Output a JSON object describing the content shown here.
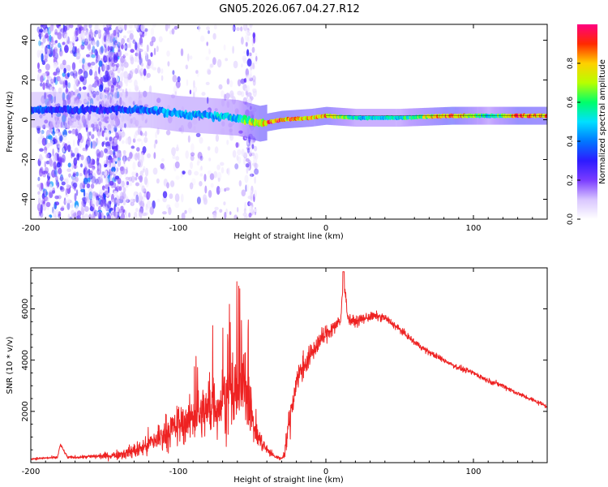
{
  "title": "GN05.2026.067.04.27.R12",
  "chart_data": [
    {
      "type": "heatmap",
      "name": "spectrogram",
      "xlabel": "Height of straight line (km)",
      "ylabel": "Frequency (Hz)",
      "xlim": [
        -200,
        150
      ],
      "ylim": [
        -50,
        48
      ],
      "xticks": [
        -200,
        -100,
        0,
        100
      ],
      "yticks": [
        -40,
        -20,
        0,
        20,
        40
      ],
      "colorbar": {
        "label": "Normalized spectral amplitude",
        "range": [
          0,
          1
        ],
        "ticks": [
          "0.0",
          "0.2",
          "0.4",
          "0.6",
          "0.8"
        ],
        "colors": [
          "#ffffff",
          "#d9c6ff",
          "#7a3cff",
          "#2d1bff",
          "#0077ff",
          "#00e0ff",
          "#00ff6a",
          "#b8ff00",
          "#ffd000",
          "#ff2a00",
          "#ff0080"
        ]
      },
      "signal_band": [
        {
          "x": -190,
          "freq_center": 5,
          "amplitude": 0.35
        },
        {
          "x": -150,
          "freq_center": 5,
          "amplitude": 0.3
        },
        {
          "x": -120,
          "freq_center": 5,
          "amplitude": 0.4
        },
        {
          "x": -100,
          "freq_center": 3,
          "amplitude": 0.45
        },
        {
          "x": -80,
          "freq_center": 2,
          "amplitude": 0.45
        },
        {
          "x": -60,
          "freq_center": 1,
          "amplitude": 0.5
        },
        {
          "x": -45,
          "freq_center": -2,
          "amplitude": 0.8
        },
        {
          "x": -30,
          "freq_center": 0,
          "amplitude": 0.85
        },
        {
          "x": -10,
          "freq_center": 1,
          "amplitude": 0.75
        },
        {
          "x": 0,
          "freq_center": 2,
          "amplitude": 0.8
        },
        {
          "x": 20,
          "freq_center": 1,
          "amplitude": 0.5
        },
        {
          "x": 50,
          "freq_center": 1,
          "amplitude": 0.5
        },
        {
          "x": 85,
          "freq_center": 2,
          "amplitude": 0.9
        },
        {
          "x": 110,
          "freq_center": 2,
          "amplitude": 0.5
        },
        {
          "x": 130,
          "freq_center": 2,
          "amplitude": 0.85
        },
        {
          "x": 150,
          "freq_center": 2,
          "amplitude": 0.8
        }
      ]
    },
    {
      "type": "line",
      "name": "snr",
      "xlabel": "Height of straight line (km)",
      "ylabel": "SNR (10 * v/v)",
      "xlim": [
        -200,
        150
      ],
      "ylim": [
        0,
        7600
      ],
      "xticks": [
        -200,
        -100,
        0,
        100
      ],
      "yticks": [
        2000,
        4000,
        6000
      ],
      "color": "#ee2222",
      "series": [
        {
          "name": "SNR",
          "x": [
            -200,
            -190,
            -182,
            -180,
            -175,
            -165,
            -155,
            -145,
            -135,
            -125,
            -115,
            -105,
            -95,
            -85,
            -75,
            -65,
            -58,
            -55,
            -52,
            -50,
            -45,
            -40,
            -35,
            -30,
            -28,
            -25,
            -20,
            -15,
            -10,
            -5,
            0,
            5,
            10,
            12,
            15,
            20,
            25,
            30,
            35,
            40,
            50,
            60,
            70,
            80,
            90,
            100,
            110,
            120,
            130,
            140,
            150
          ],
          "y": [
            150,
            180,
            200,
            700,
            200,
            220,
            250,
            280,
            380,
            550,
            900,
            1300,
            1600,
            1900,
            2200,
            2500,
            2800,
            3000,
            2500,
            1600,
            900,
            500,
            250,
            150,
            400,
            1500,
            3200,
            3800,
            4200,
            4700,
            5000,
            5300,
            5500,
            7300,
            5600,
            5500,
            5600,
            5700,
            5700,
            5650,
            5200,
            4700,
            4300,
            4000,
            3700,
            3500,
            3200,
            3000,
            2700,
            2450,
            2200
          ],
          "spread": [
            60,
            80,
            80,
            100,
            80,
            100,
            150,
            250,
            350,
            600,
            900,
            1100,
            1300,
            1500,
            1800,
            2200,
            2300,
            2500,
            2000,
            1200,
            700,
            300,
            150,
            100,
            300,
            1000,
            900,
            800,
            700,
            600,
            550,
            500,
            450,
            300,
            400,
            300,
            300,
            280,
            260,
            240,
            200,
            190,
            180,
            170,
            160,
            160,
            150,
            150,
            140,
            140,
            130
          ]
        }
      ]
    }
  ]
}
